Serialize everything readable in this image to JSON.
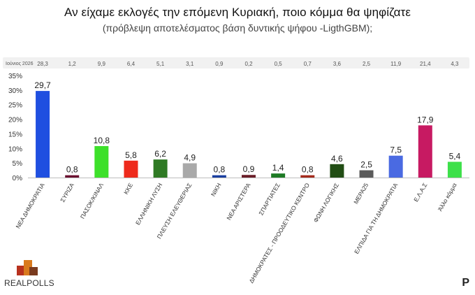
{
  "header": {
    "title": "Αν είχαμε εκλογές την επόμενη Κυριακή, ποιο κόμμα θα ψηφίζατε",
    "subtitle": "(πρόβλεψη αποτελέσματος βάση δυντικής ψήφου -LigthGBM);"
  },
  "chart_data": {
    "type": "bar",
    "categories": [
      "ΝΕΑ ΔΗΜΟΚΡΑΤΙΑ",
      "ΣΥΡΙΖΑ",
      "ΠΑΣΟΚ/ΚΙΝΑΛ",
      "ΚΚΕ",
      "ΕΛΛΗΝΙΚΗ ΛΥΣΗ",
      "ΠΛΕΥΣΗ ΕΛΕΥΘΕΡΙΑΣ",
      "ΝΙΚΗ",
      "ΝΕΑ ΑΡΙΣΤΕΡΑ",
      "ΣΠΑΡΤΙΑΤΕΣ",
      "ΔΗΜΟΚΡΑΤΕΣ - ΠΡΟΟΔΕΥΤΙΚΟ ΚΕΝΤΡΟ",
      "ΦΩΝΗ ΛΟΓΙΚΗΣ",
      "ΜΕΡΑ25",
      "ΕΛΠΙΔΑ ΓΙΑ ΤΗ ΔΗΜΟΚΡΑΤΙΑ",
      "Ε.Λ.Α.Σ",
      "Άλλο κόμμα"
    ],
    "values": [
      29.7,
      0.8,
      10.8,
      5.8,
      6.2,
      4.9,
      0.8,
      0.9,
      1.4,
      0.8,
      4.6,
      2.5,
      7.5,
      17.9,
      5.4
    ],
    "value_labels": [
      "29,7",
      "0,8",
      "10,8",
      "5,8",
      "6,2",
      "4,9",
      "0,8",
      "0,9",
      "1,4",
      "0,8",
      "4,6",
      "2,5",
      "7,5",
      "17,9",
      "5,4"
    ],
    "colors": [
      "#1f4fe0",
      "#6b1030",
      "#3de02a",
      "#ee2a1c",
      "#2f7a24",
      "#a9a9a9",
      "#1a3fa0",
      "#6a1d28",
      "#1d7a24",
      "#a32a1c",
      "#214d14",
      "#5a5a5a",
      "#4a6ae2",
      "#c71a62",
      "#3de04a"
    ],
    "ylim": [
      0,
      35
    ],
    "yticks": [
      "0%",
      "5%",
      "10%",
      "15%",
      "20%",
      "25%",
      "30%",
      "35%"
    ],
    "grid": false,
    "legend": "none",
    "comparison_row": {
      "label": "Ιούνιος 2026",
      "values": [
        "28,3",
        "1,2",
        "9,9",
        "6,4",
        "5,1",
        "3,1",
        "0,9",
        "0,2",
        "0,5",
        "0,7",
        "3,6",
        "2,5",
        "11,9",
        "21,4",
        "4,3"
      ]
    }
  },
  "footer": {
    "logo_left": "REALPOLLS",
    "logo_right": "P"
  }
}
